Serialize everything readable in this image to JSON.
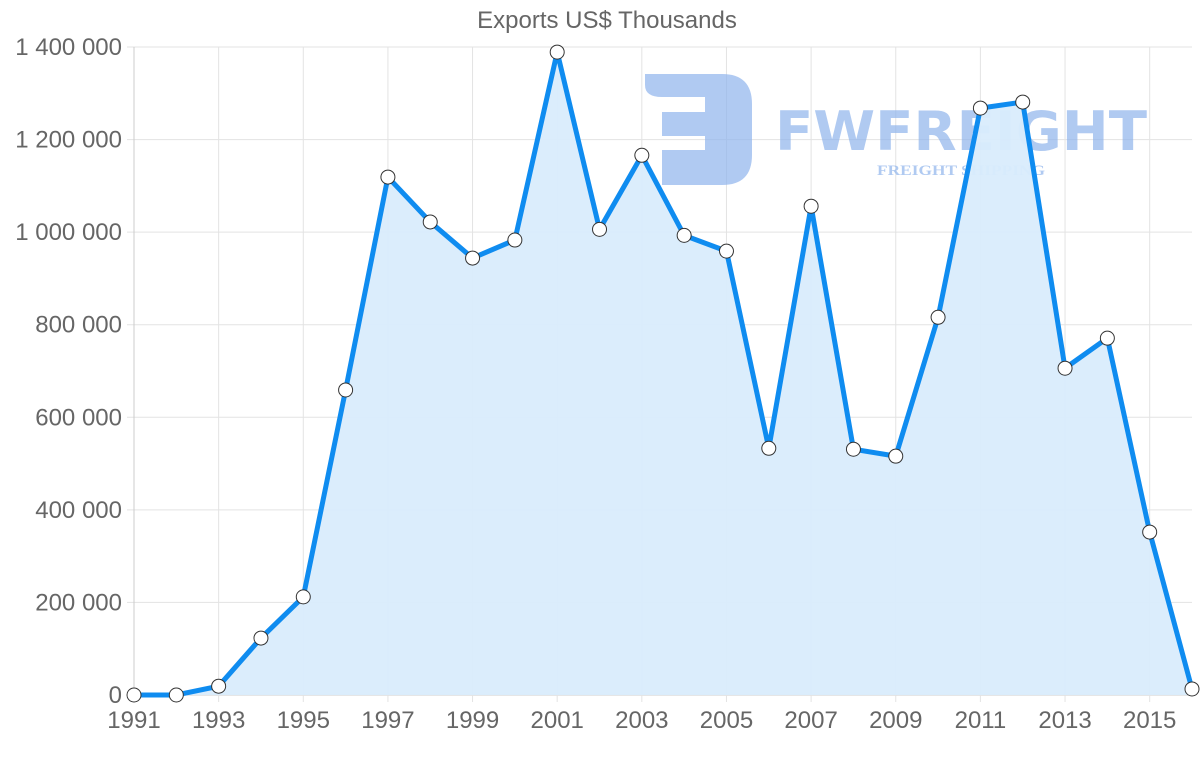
{
  "chart_data": {
    "type": "area",
    "title": "Exports US$ Thousands",
    "xlabel": "",
    "ylabel": "",
    "x": [
      1991,
      1992,
      1993,
      1994,
      1995,
      1996,
      1997,
      1998,
      1999,
      2000,
      2001,
      2002,
      2003,
      2004,
      2005,
      2006,
      2007,
      2008,
      2009,
      2010,
      2011,
      2012,
      2013,
      2014,
      2015,
      2016
    ],
    "series": [
      {
        "name": "Exports US$ Thousands",
        "values": [
          0,
          0,
          19000,
          123000,
          212000,
          659000,
          1119000,
          1022000,
          944000,
          983000,
          1389000,
          1006000,
          1166000,
          993000,
          959000,
          533000,
          1056000,
          531000,
          516000,
          816000,
          1268000,
          1281000,
          706000,
          771000,
          352000,
          13000
        ]
      }
    ],
    "x_tick_labels": [
      "1991",
      "1993",
      "1995",
      "1997",
      "1999",
      "2001",
      "2003",
      "2005",
      "2007",
      "2009",
      "2011",
      "2013",
      "2015"
    ],
    "y_tick_labels": [
      "0",
      "200 000",
      "400 000",
      "600 000",
      "800 000",
      "1 000 000",
      "1 200 000",
      "1 400 000"
    ],
    "y_ticks": [
      0,
      200000,
      400000,
      600000,
      800000,
      1000000,
      1200000,
      1400000
    ],
    "ylim": [
      0,
      1400000
    ],
    "xlim": [
      1991,
      2016
    ],
    "grid": true,
    "legend": "none",
    "colors": {
      "line": "#0f8cf0",
      "fill": "#d9ecfc",
      "point_fill": "#ffffff",
      "point_stroke": "#333333",
      "grid": "#e3e3e3",
      "axis": "#cccccc",
      "text": "#666666"
    }
  },
  "watermark": {
    "brand": "FWFREIGHT",
    "tagline": "FREIGHT SHIPPING",
    "color": "#8fb4ec"
  }
}
